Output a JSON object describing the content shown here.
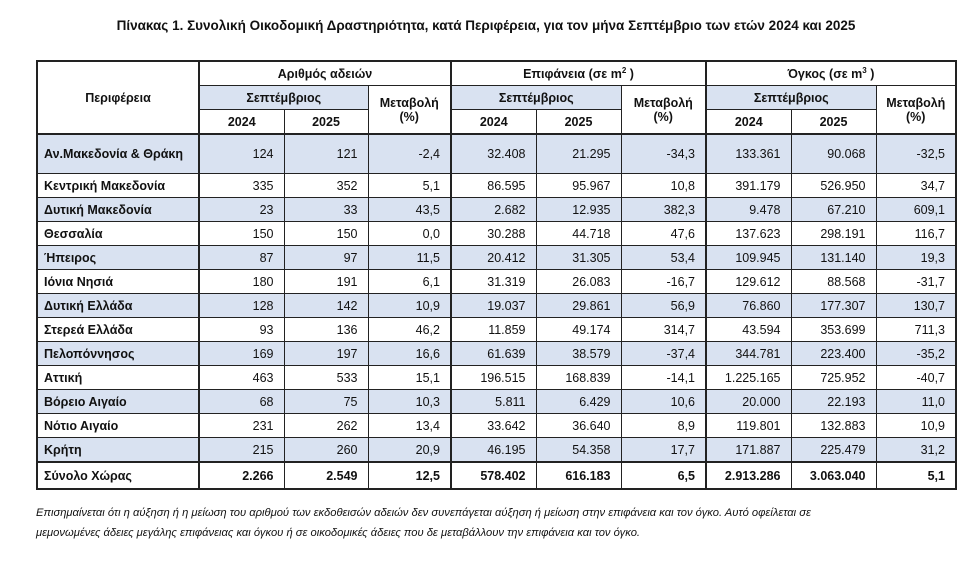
{
  "title": "Πίνακας 1. Συνολική Οικοδομική Δραστηριότητα, κατά  Περιφέρεια, για τον μήνα Σεπτέμβριο των ετών 2024 και 2025",
  "header": {
    "region": "Περιφέρεια",
    "groups": [
      {
        "label": "Αριθμός αδειών",
        "sup": ""
      },
      {
        "label": "Επιφάνεια (σε m",
        "sup": "2",
        "suffix": " )"
      },
      {
        "label": "Όγκος (σε m",
        "sup": "3",
        "suffix": " )"
      }
    ],
    "month": "Σεπτέμβριος",
    "change_line1": "Μεταβολή",
    "change_line2": "(%)",
    "year1": "2024",
    "year2": "2025"
  },
  "rows": [
    [
      "Αν.Μακεδονία & Θράκη",
      "124",
      "121",
      "-2,4",
      "32.408",
      "21.295",
      "-34,3",
      "133.361",
      "90.068",
      "-32,5"
    ],
    [
      "Κεντρική Μακεδονία",
      "335",
      "352",
      "5,1",
      "86.595",
      "95.967",
      "10,8",
      "391.179",
      "526.950",
      "34,7"
    ],
    [
      "Δυτική Μακεδονία",
      "23",
      "33",
      "43,5",
      "2.682",
      "12.935",
      "382,3",
      "9.478",
      "67.210",
      "609,1"
    ],
    [
      "Θεσσαλία",
      "150",
      "150",
      "0,0",
      "30.288",
      "44.718",
      "47,6",
      "137.623",
      "298.191",
      "116,7"
    ],
    [
      "Ήπειρος",
      "87",
      "97",
      "11,5",
      "20.412",
      "31.305",
      "53,4",
      "109.945",
      "131.140",
      "19,3"
    ],
    [
      "Ιόνια Νησιά",
      "180",
      "191",
      "6,1",
      "31.319",
      "26.083",
      "-16,7",
      "129.612",
      "88.568",
      "-31,7"
    ],
    [
      "Δυτική Ελλάδα",
      "128",
      "142",
      "10,9",
      "19.037",
      "29.861",
      "56,9",
      "76.860",
      "177.307",
      "130,7"
    ],
    [
      "Στερεά Ελλάδα",
      "93",
      "136",
      "46,2",
      "11.859",
      "49.174",
      "314,7",
      "43.594",
      "353.699",
      "711,3"
    ],
    [
      "Πελοπόννησος",
      "169",
      "197",
      "16,6",
      "61.639",
      "38.579",
      "-37,4",
      "344.781",
      "223.400",
      "-35,2"
    ],
    [
      "Αττική",
      "463",
      "533",
      "15,1",
      "196.515",
      "168.839",
      "-14,1",
      "1.225.165",
      "725.952",
      "-40,7"
    ],
    [
      "Βόρειο Αιγαίο",
      "68",
      "75",
      "10,3",
      "5.811",
      "6.429",
      "10,6",
      "20.000",
      "22.193",
      "11,0"
    ],
    [
      "Νότιο Αιγαίο",
      "231",
      "262",
      "13,4",
      "33.642",
      "36.640",
      "8,9",
      "119.801",
      "132.883",
      "10,9"
    ],
    [
      "Κρήτη",
      "215",
      "260",
      "20,9",
      "46.195",
      "54.358",
      "17,7",
      "171.887",
      "225.479",
      "31,2"
    ]
  ],
  "total": [
    "Σύνολο Χώρας",
    "2.266",
    "2.549",
    "12,5",
    "578.402",
    "616.183",
    "6,5",
    "2.913.286",
    "3.063.040",
    "5,1"
  ],
  "note_line1": "Επισημαίνεται ότι η αύξηση ή η μείωση του αριθμού των εκδοθεισών αδειών δεν συνεπάγεται αύξηση ή μείωση στην επιφάνεια και τον όγκο. Αυτό οφείλεται σε",
  "note_line2": "μεμονωμένες άδειες μεγάλης επιφάνειας και όγκου ή σε οικοδομικές άδειες που δε μεταβάλλουν την επιφάνεια και τον όγκο.",
  "colors": {
    "band": "#d9e2f1",
    "border": "#222222"
  }
}
